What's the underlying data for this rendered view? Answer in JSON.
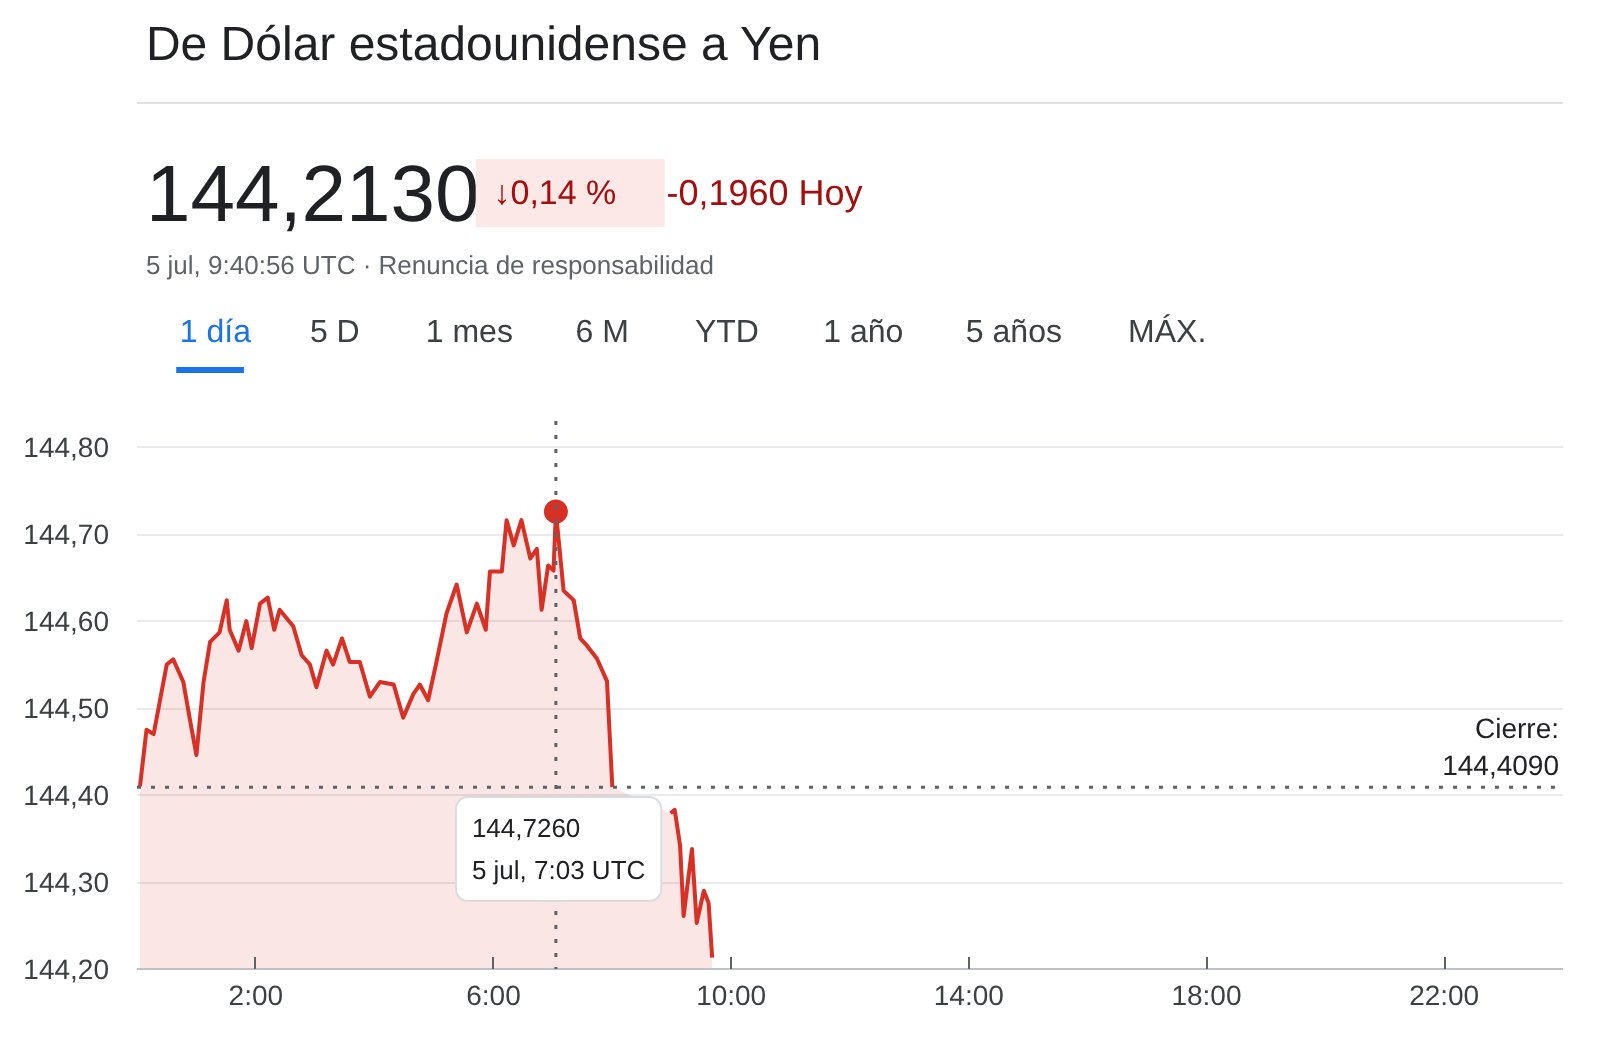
{
  "chart_data": {
    "type": "area",
    "title": "De Dólar estadounidense a Yen",
    "x": [
      0.05,
      0.16,
      0.28,
      0.5,
      0.61,
      0.78,
      0.89,
      1.0,
      1.12,
      1.23,
      1.39,
      1.51,
      1.56,
      1.71,
      1.84,
      1.93,
      2.07,
      2.2,
      2.31,
      2.4,
      2.63,
      2.77,
      2.91,
      3.02,
      3.19,
      3.3,
      3.45,
      3.58,
      3.75,
      3.92,
      4.09,
      4.32,
      4.48,
      4.65,
      4.76,
      4.9,
      5.04,
      5.21,
      5.38,
      5.55,
      5.72,
      5.87,
      5.94,
      6.14,
      6.22,
      6.34,
      6.47,
      6.62,
      6.73,
      6.81,
      6.92,
      7.01,
      7.05,
      7.18,
      7.35,
      7.46,
      7.57,
      7.74,
      7.91,
      8.0,
      8.77,
      8.98,
      9.05,
      9.14,
      9.2,
      9.34,
      9.42,
      9.54,
      9.62,
      9.68
    ],
    "series": [
      {
        "color": "#d93025",
        "values": [
          144.41,
          144.475,
          144.47,
          144.55,
          144.556,
          144.53,
          144.487,
          144.446,
          144.53,
          144.576,
          144.587,
          144.624,
          144.59,
          144.566,
          144.6,
          144.569,
          144.62,
          144.627,
          144.59,
          144.613,
          144.594,
          144.561,
          144.55,
          144.524,
          144.566,
          144.55,
          144.58,
          144.553,
          144.553,
          144.513,
          144.53,
          144.527,
          144.489,
          144.516,
          144.527,
          144.509,
          144.553,
          144.609,
          144.642,
          144.587,
          144.62,
          144.59,
          144.657,
          144.657,
          144.716,
          144.687,
          144.716,
          144.672,
          144.683,
          144.613,
          144.664,
          144.658,
          144.726,
          144.635,
          144.624,
          144.58,
          144.572,
          144.557,
          144.531,
          144.409,
          null,
          144.379,
          144.383,
          144.342,
          144.261,
          144.338,
          144.253,
          144.29,
          144.276,
          144.213
        ]
      }
    ],
    "xlim": [
      0,
      24
    ],
    "ylim": [
      144.2,
      144.83
    ],
    "xticks": [
      {
        "value": 2,
        "label": "2:00"
      },
      {
        "value": 6,
        "label": "6:00"
      },
      {
        "value": 10,
        "label": "10:00"
      },
      {
        "value": 14,
        "label": "14:00"
      },
      {
        "value": 18,
        "label": "18:00"
      },
      {
        "value": 22,
        "label": "22:00"
      }
    ],
    "yticks": [
      {
        "value": 144.2,
        "label": "144,20"
      },
      {
        "value": 144.3,
        "label": "144,30"
      },
      {
        "value": 144.4,
        "label": "144,40"
      },
      {
        "value": 144.5,
        "label": "144,50"
      },
      {
        "value": 144.6,
        "label": "144,60"
      },
      {
        "value": 144.7,
        "label": "144,70"
      },
      {
        "value": 144.8,
        "label": "144,80"
      }
    ],
    "grid": "y",
    "ref_lines": [
      {
        "axis": "y",
        "value": 144.409,
        "label": "Cierre:\n144,4090",
        "line_style": "dotted",
        "color": "#5f6368"
      },
      {
        "axis": "x",
        "value": 7.05,
        "line_style": "dotted",
        "color": "#5f6368"
      }
    ],
    "annotations": [
      "144,2130",
      "↓0,14 %",
      "-0,1960 Hoy",
      "5 jul, 9:40:56 UTC · Renuncia de responsabilidad",
      "1 día",
      "5 D",
      "1 mes",
      "6 M",
      "YTD",
      "1 año",
      "5 años",
      "MÁX.",
      "144,7260\n5 jul, 7:03 UTC"
    ]
  }
}
